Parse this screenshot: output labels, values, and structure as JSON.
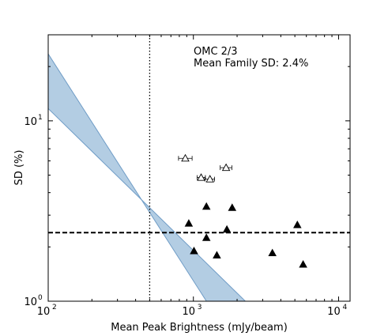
{
  "chart_data": {
    "type": "scatter",
    "xlabel": "Mean Peak Brightness (mJy/beam)",
    "ylabel": "SD (%)",
    "x_scale": "log",
    "y_scale": "log",
    "xlim": [
      100,
      12000
    ],
    "ylim": [
      1,
      30
    ],
    "x_ticks": [
      {
        "value": 100,
        "base": "10",
        "exp": "2"
      },
      {
        "value": 1000,
        "base": "10",
        "exp": "3"
      },
      {
        "value": 10000,
        "base": "10",
        "exp": "4"
      }
    ],
    "y_ticks": [
      {
        "value": 1,
        "base": "10",
        "exp": "0"
      },
      {
        "value": 10,
        "base": "10",
        "exp": "1"
      }
    ],
    "grid": false,
    "annotations": {
      "line1": "OMC 2/3",
      "line2": "Mean Family SD: 2.4%"
    },
    "mean_family_sd": 2.4,
    "vertical_line_x": 500,
    "band": {
      "color": "#b3cde3",
      "edge_color": "#6f9cc6",
      "upper": [
        {
          "x": 100,
          "y": 23.5
        },
        {
          "x": 1230,
          "y": 1.0
        }
      ],
      "lower": [
        {
          "x": 100,
          "y": 11.7
        },
        {
          "x": 2280,
          "y": 1.0
        }
      ]
    },
    "series": [
      {
        "marker": "open-triangle",
        "points": [
          {
            "x": 880,
            "y": 6.2,
            "xerr": [
              790,
              980
            ]
          },
          {
            "x": 1130,
            "y": 4.85,
            "xerr": [
              1060,
              1210
            ]
          },
          {
            "x": 1300,
            "y": 4.75,
            "xerr": [
              1200,
              1400
            ]
          },
          {
            "x": 1680,
            "y": 5.5,
            "xerr": [
              1530,
              1840
            ]
          }
        ]
      },
      {
        "marker": "filled-triangle",
        "points": [
          {
            "x": 930,
            "y": 2.7
          },
          {
            "x": 1010,
            "y": 1.9
          },
          {
            "x": 1230,
            "y": 2.25
          },
          {
            "x": 1230,
            "y": 3.35
          },
          {
            "x": 1450,
            "y": 1.8
          },
          {
            "x": 1700,
            "y": 2.5
          },
          {
            "x": 1850,
            "y": 3.3
          },
          {
            "x": 3500,
            "y": 1.85
          },
          {
            "x": 5200,
            "y": 2.65
          },
          {
            "x": 5700,
            "y": 1.6
          }
        ]
      }
    ]
  }
}
